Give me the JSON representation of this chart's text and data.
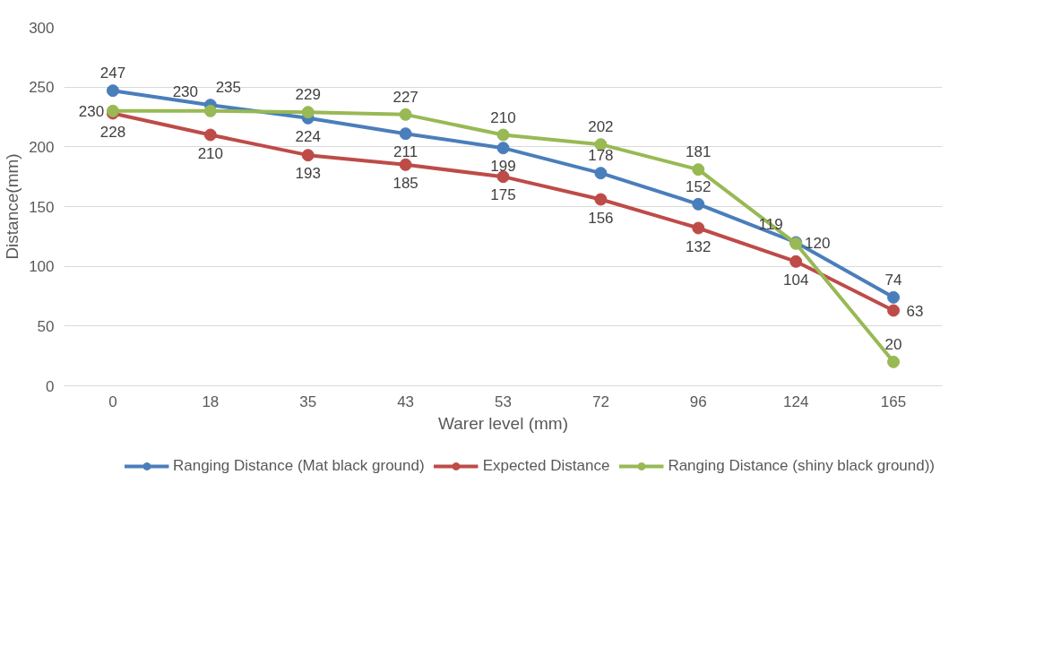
{
  "chart_data": {
    "type": "line",
    "xlabel": "Warer level (mm)",
    "ylabel": "Distance(mm)",
    "categories": [
      "0",
      "18",
      "35",
      "43",
      "53",
      "72",
      "96",
      "124",
      "165"
    ],
    "series": [
      {
        "name": "Ranging Distance (Mat black ground)",
        "color": "#4a7ebb",
        "values": [
          247,
          235,
          224,
          211,
          199,
          178,
          152,
          120,
          74
        ]
      },
      {
        "name": "Expected Distance",
        "color": "#be4b48",
        "values": [
          228,
          210,
          193,
          185,
          175,
          156,
          132,
          104,
          63
        ]
      },
      {
        "name": "Ranging Distance (shiny black ground))",
        "color": "#98b954",
        "values": [
          230,
          230,
          229,
          227,
          210,
          202,
          181,
          119,
          20
        ]
      }
    ],
    "ylim": [
      0,
      300
    ],
    "yticks": [
      0,
      50,
      100,
      150,
      200,
      250,
      300
    ],
    "grid": "y",
    "legend": "bottom",
    "marker": "circle",
    "line_style": "solid",
    "data_labels": true
  }
}
